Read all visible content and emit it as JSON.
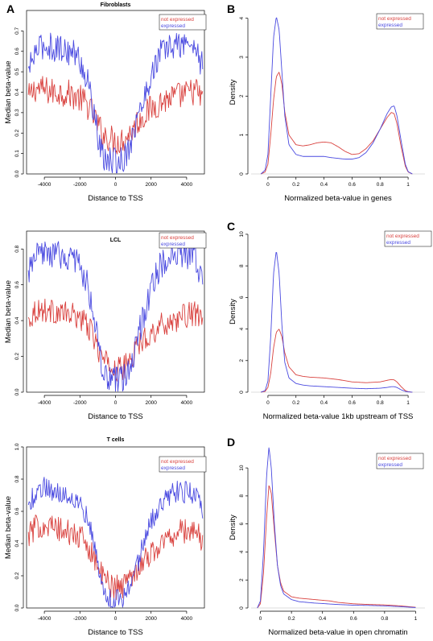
{
  "colors": {
    "red": "#d9423f",
    "blue": "#4a4ae0"
  },
  "chart_data": [
    {
      "id": "fibroblasts",
      "type": "line",
      "title": "Fibroblasts",
      "xlabel": "Distance to TSS",
      "ylabel": "Median beta-value",
      "xlim": [
        -5000,
        5000
      ],
      "ylim": [
        0,
        0.8
      ],
      "xticks": [
        -4000,
        -2000,
        0,
        2000,
        4000
      ],
      "yticks": [
        0.0,
        0.1,
        0.2,
        0.3,
        0.4,
        0.5,
        0.6,
        0.7
      ],
      "legend": [
        "not expressed",
        "expressed"
      ],
      "legend_position": "top-right",
      "series": [
        {
          "name": "not expressed",
          "color": "red",
          "x": [
            -4900,
            -4500,
            -4000,
            -3500,
            -3000,
            -2500,
            -2000,
            -1500,
            -1200,
            -1000,
            -800,
            -600,
            -400,
            -200,
            0,
            200,
            400,
            600,
            800,
            1000,
            1200,
            1500,
            2000,
            2500,
            3000,
            3500,
            4000,
            4500,
            4900
          ],
          "y": [
            0.37,
            0.42,
            0.41,
            0.4,
            0.4,
            0.39,
            0.37,
            0.33,
            0.28,
            0.24,
            0.21,
            0.19,
            0.18,
            0.17,
            0.16,
            0.16,
            0.17,
            0.18,
            0.2,
            0.22,
            0.25,
            0.28,
            0.32,
            0.35,
            0.37,
            0.38,
            0.39,
            0.41,
            0.36
          ],
          "noise": 0.07
        },
        {
          "name": "expressed",
          "color": "blue",
          "x": [
            -4900,
            -4500,
            -4000,
            -3500,
            -3000,
            -2500,
            -2000,
            -1500,
            -1200,
            -1000,
            -800,
            -600,
            -400,
            -200,
            0,
            200,
            400,
            600,
            800,
            1000,
            1200,
            1500,
            2000,
            2500,
            3000,
            3500,
            4000,
            4500,
            4900
          ],
          "y": [
            0.5,
            0.6,
            0.63,
            0.62,
            0.61,
            0.6,
            0.56,
            0.43,
            0.3,
            0.18,
            0.1,
            0.07,
            0.06,
            0.06,
            0.06,
            0.06,
            0.07,
            0.1,
            0.15,
            0.2,
            0.26,
            0.34,
            0.48,
            0.59,
            0.62,
            0.63,
            0.64,
            0.62,
            0.52
          ],
          "noise": 0.07
        }
      ]
    },
    {
      "id": "lcl",
      "type": "line",
      "title": "LCL",
      "xlabel": "Distance to TSS",
      "ylabel": "Median beta-value",
      "xlim": [
        -5000,
        5000
      ],
      "ylim": [
        0,
        0.9
      ],
      "xticks": [
        -4000,
        -2000,
        0,
        2000,
        4000
      ],
      "yticks": [
        0.0,
        0.2,
        0.4,
        0.6,
        0.8
      ],
      "legend": [
        "not expressed",
        "expressed"
      ],
      "legend_position": "top-right",
      "series": [
        {
          "name": "not expressed",
          "color": "red",
          "x": [
            -4900,
            -4500,
            -4000,
            -3500,
            -3000,
            -2500,
            -2000,
            -1500,
            -1200,
            -1000,
            -800,
            -600,
            -400,
            -200,
            0,
            200,
            400,
            600,
            800,
            1000,
            1200,
            1500,
            2000,
            2500,
            3000,
            3500,
            4000,
            4500,
            4900
          ],
          "y": [
            0.4,
            0.46,
            0.46,
            0.45,
            0.44,
            0.43,
            0.42,
            0.36,
            0.3,
            0.25,
            0.2,
            0.17,
            0.15,
            0.14,
            0.13,
            0.13,
            0.13,
            0.15,
            0.18,
            0.21,
            0.25,
            0.29,
            0.33,
            0.37,
            0.39,
            0.41,
            0.43,
            0.44,
            0.38
          ],
          "noise": 0.07
        },
        {
          "name": "expressed",
          "color": "blue",
          "x": [
            -4900,
            -4500,
            -4000,
            -3500,
            -3000,
            -2500,
            -2000,
            -1500,
            -1200,
            -1000,
            -800,
            -600,
            -400,
            -200,
            0,
            200,
            400,
            600,
            800,
            1000,
            1200,
            1500,
            2000,
            2500,
            3000,
            3500,
            4000,
            4500,
            4900
          ],
          "y": [
            0.66,
            0.75,
            0.78,
            0.77,
            0.76,
            0.75,
            0.71,
            0.58,
            0.42,
            0.28,
            0.15,
            0.09,
            0.07,
            0.06,
            0.06,
            0.06,
            0.07,
            0.09,
            0.14,
            0.2,
            0.28,
            0.4,
            0.58,
            0.7,
            0.75,
            0.77,
            0.77,
            0.75,
            0.62
          ],
          "noise": 0.08
        }
      ]
    },
    {
      "id": "tcells",
      "type": "line",
      "title": "T cells",
      "xlabel": "Distance to TSS",
      "ylabel": "Median beta-value",
      "xlim": [
        -5000,
        5000
      ],
      "ylim": [
        0,
        1.0
      ],
      "xticks": [
        -4000,
        -2000,
        0,
        2000,
        4000
      ],
      "yticks": [
        0.0,
        0.2,
        0.4,
        0.6,
        0.8,
        1.0
      ],
      "legend": [
        "not expressed",
        "expressed"
      ],
      "legend_position": "top-right",
      "series": [
        {
          "name": "not expressed",
          "color": "red",
          "x": [
            -4900,
            -4500,
            -4000,
            -3500,
            -3000,
            -2500,
            -2000,
            -1500,
            -1200,
            -1000,
            -800,
            -600,
            -400,
            -200,
            0,
            200,
            400,
            600,
            800,
            1000,
            1200,
            1500,
            2000,
            2500,
            3000,
            3500,
            4000,
            4500,
            4900
          ],
          "y": [
            0.45,
            0.5,
            0.52,
            0.5,
            0.48,
            0.46,
            0.44,
            0.38,
            0.32,
            0.26,
            0.21,
            0.18,
            0.16,
            0.14,
            0.13,
            0.13,
            0.14,
            0.16,
            0.19,
            0.22,
            0.25,
            0.29,
            0.34,
            0.39,
            0.44,
            0.47,
            0.48,
            0.48,
            0.42
          ],
          "noise": 0.08
        },
        {
          "name": "expressed",
          "color": "blue",
          "x": [
            -4900,
            -4500,
            -4000,
            -3500,
            -3000,
            -2500,
            -2000,
            -1500,
            -1200,
            -1000,
            -800,
            -600,
            -400,
            -200,
            0,
            200,
            400,
            600,
            800,
            1000,
            1200,
            1500,
            2000,
            2500,
            3000,
            3500,
            4000,
            4500,
            4900
          ],
          "y": [
            0.62,
            0.72,
            0.75,
            0.73,
            0.71,
            0.7,
            0.66,
            0.54,
            0.4,
            0.27,
            0.15,
            0.08,
            0.06,
            0.05,
            0.05,
            0.05,
            0.06,
            0.08,
            0.13,
            0.19,
            0.27,
            0.37,
            0.53,
            0.64,
            0.7,
            0.72,
            0.72,
            0.7,
            0.58
          ],
          "noise": 0.07
        }
      ]
    },
    {
      "id": "density-genes",
      "type": "line",
      "xlabel": "Normalized beta-value in genes",
      "ylabel": "Density",
      "xlim": [
        -0.12,
        1.12
      ],
      "ylim": [
        0,
        4.2
      ],
      "xticks": [
        0.0,
        0.2,
        0.4,
        0.6,
        0.8,
        1.0
      ],
      "yticks": [
        0,
        1,
        2,
        3,
        4
      ],
      "baseline": true,
      "legend": [
        "not expressed",
        "expressed"
      ],
      "legend_position": "top-right",
      "series": [
        {
          "name": "not expressed",
          "color": "red",
          "x": [
            -0.05,
            -0.02,
            0.0,
            0.02,
            0.04,
            0.06,
            0.08,
            0.1,
            0.12,
            0.15,
            0.2,
            0.25,
            0.3,
            0.35,
            0.4,
            0.45,
            0.5,
            0.55,
            0.6,
            0.65,
            0.7,
            0.75,
            0.8,
            0.85,
            0.88,
            0.9,
            0.92,
            0.95,
            0.98,
            1.0,
            1.03
          ],
          "y": [
            0.0,
            0.05,
            0.25,
            1.0,
            1.9,
            2.5,
            2.62,
            2.3,
            1.6,
            1.0,
            0.75,
            0.72,
            0.75,
            0.8,
            0.82,
            0.8,
            0.7,
            0.58,
            0.5,
            0.52,
            0.65,
            0.85,
            1.15,
            1.45,
            1.58,
            1.55,
            1.3,
            0.7,
            0.2,
            0.05,
            0.0
          ],
          "noise": 0
        },
        {
          "name": "expressed",
          "color": "blue",
          "x": [
            -0.05,
            -0.02,
            0.0,
            0.02,
            0.04,
            0.06,
            0.08,
            0.1,
            0.12,
            0.15,
            0.2,
            0.25,
            0.3,
            0.35,
            0.4,
            0.45,
            0.5,
            0.55,
            0.6,
            0.65,
            0.7,
            0.75,
            0.8,
            0.85,
            0.88,
            0.9,
            0.92,
            0.95,
            0.98,
            1.0,
            1.03
          ],
          "y": [
            0.0,
            0.1,
            0.5,
            2.0,
            3.5,
            4.05,
            3.7,
            2.6,
            1.5,
            0.75,
            0.5,
            0.45,
            0.45,
            0.45,
            0.45,
            0.42,
            0.4,
            0.38,
            0.38,
            0.42,
            0.55,
            0.8,
            1.15,
            1.55,
            1.72,
            1.75,
            1.5,
            0.85,
            0.25,
            0.06,
            0.0
          ],
          "noise": 0
        }
      ]
    },
    {
      "id": "density-upstream",
      "type": "line",
      "xlabel": "Normalized beta-value 1kb upstream of TSS",
      "ylabel": "Density",
      "xlim": [
        -0.12,
        1.12
      ],
      "ylim": [
        0,
        10.2
      ],
      "xticks": [
        0.0,
        0.2,
        0.4,
        0.6,
        0.8,
        1.0
      ],
      "yticks": [
        0,
        2,
        4,
        6,
        8,
        10
      ],
      "baseline": true,
      "legend": [
        "not expressed",
        "expressed"
      ],
      "legend_position": "top-right",
      "series": [
        {
          "name": "not expressed",
          "color": "red",
          "x": [
            -0.05,
            -0.02,
            0.0,
            0.02,
            0.04,
            0.06,
            0.08,
            0.1,
            0.12,
            0.15,
            0.2,
            0.25,
            0.3,
            0.4,
            0.5,
            0.6,
            0.7,
            0.8,
            0.85,
            0.88,
            0.9,
            0.92,
            0.95,
            0.98,
            1.0,
            1.03
          ],
          "y": [
            0.0,
            0.05,
            0.3,
            1.2,
            2.8,
            3.8,
            4.0,
            3.5,
            2.5,
            1.6,
            1.1,
            1.0,
            0.95,
            0.9,
            0.8,
            0.65,
            0.6,
            0.65,
            0.75,
            0.8,
            0.78,
            0.65,
            0.35,
            0.1,
            0.03,
            0.0
          ],
          "noise": 0
        },
        {
          "name": "expressed",
          "color": "blue",
          "x": [
            -0.05,
            -0.02,
            0.0,
            0.02,
            0.04,
            0.06,
            0.08,
            0.1,
            0.12,
            0.15,
            0.2,
            0.25,
            0.3,
            0.4,
            0.5,
            0.6,
            0.7,
            0.8,
            0.85,
            0.88,
            0.9,
            0.92,
            0.95,
            0.98,
            1.0,
            1.03
          ],
          "y": [
            0.0,
            0.1,
            0.7,
            3.5,
            7.5,
            9.0,
            7.5,
            4.2,
            1.9,
            0.9,
            0.55,
            0.45,
            0.4,
            0.35,
            0.3,
            0.25,
            0.22,
            0.25,
            0.3,
            0.35,
            0.35,
            0.3,
            0.15,
            0.05,
            0.02,
            0.0
          ],
          "noise": 0
        }
      ]
    },
    {
      "id": "density-chromatin",
      "type": "line",
      "xlabel": "Normalized beta-value in open chromatin",
      "ylabel": "Density",
      "xlim": [
        -0.06,
        1.06
      ],
      "ylim": [
        0,
        11.5
      ],
      "xticks": [
        0.0,
        0.2,
        0.4,
        0.6,
        0.8,
        1.0
      ],
      "yticks": [
        0,
        2,
        4,
        6,
        8,
        10
      ],
      "baseline": true,
      "legend": [
        "not expressed",
        "expressed"
      ],
      "legend_position": "top-right",
      "series": [
        {
          "name": "not expressed",
          "color": "red",
          "x": [
            -0.02,
            0.0,
            0.02,
            0.04,
            0.055,
            0.07,
            0.09,
            0.11,
            0.13,
            0.15,
            0.2,
            0.25,
            0.3,
            0.35,
            0.4,
            0.45,
            0.5,
            0.6,
            0.7,
            0.8,
            0.9,
            1.0
          ],
          "y": [
            0.0,
            0.3,
            2.5,
            6.5,
            8.8,
            8.2,
            5.5,
            3.0,
            1.8,
            1.2,
            0.8,
            0.7,
            0.65,
            0.6,
            0.55,
            0.5,
            0.4,
            0.3,
            0.25,
            0.22,
            0.15,
            0.05
          ],
          "noise": 0
        },
        {
          "name": "expressed",
          "color": "blue",
          "x": [
            -0.02,
            0.0,
            0.02,
            0.04,
            0.055,
            0.07,
            0.09,
            0.11,
            0.13,
            0.15,
            0.2,
            0.25,
            0.3,
            0.35,
            0.4,
            0.45,
            0.5,
            0.6,
            0.7,
            0.8,
            0.9,
            1.0
          ],
          "y": [
            0.0,
            0.5,
            4.0,
            9.5,
            11.5,
            10.0,
            6.0,
            3.0,
            1.6,
            1.0,
            0.6,
            0.45,
            0.4,
            0.35,
            0.32,
            0.28,
            0.25,
            0.2,
            0.18,
            0.15,
            0.1,
            0.03
          ],
          "noise": 0
        }
      ]
    }
  ],
  "panel_letters": [
    {
      "label": "A"
    },
    {
      "label": "B"
    },
    {
      "label": "C"
    },
    {
      "label": "D"
    }
  ]
}
